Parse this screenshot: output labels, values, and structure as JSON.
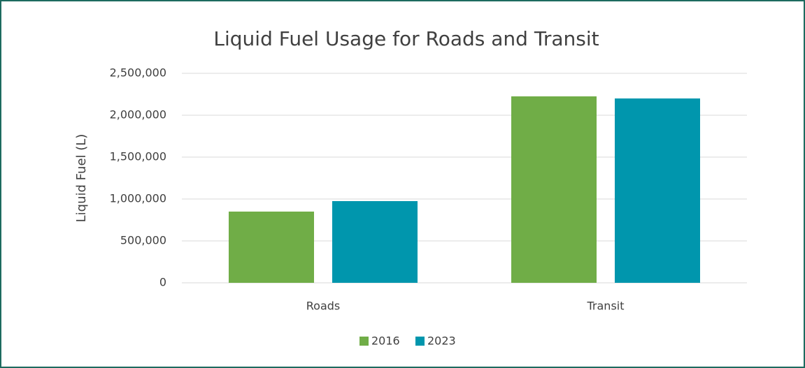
{
  "chart_data": {
    "type": "bar",
    "title": "Liquid Fuel Usage for Roads and Transit",
    "y_label": "Liquid Fuel (L)",
    "categories": [
      "Roads",
      "Transit"
    ],
    "series": [
      {
        "name": "2016",
        "color": "#70ad47",
        "values": [
          850000,
          2225000
        ]
      },
      {
        "name": "2023",
        "color": "#0096ad",
        "values": [
          975000,
          2200000
        ]
      }
    ],
    "ylim": [
      0,
      2500000
    ],
    "yticks": [
      0,
      {
        "value": 500000,
        "label": "500,000"
      },
      {
        "value": 1000000,
        "label": "1,000,000"
      },
      {
        "value": 1500000,
        "label": "1,500,000"
      },
      {
        "value": 2000000,
        "label": "2,000,000"
      },
      {
        "value": 2500000,
        "label": "2,500,000"
      }
    ],
    "grid": true,
    "legend": "bottom"
  }
}
